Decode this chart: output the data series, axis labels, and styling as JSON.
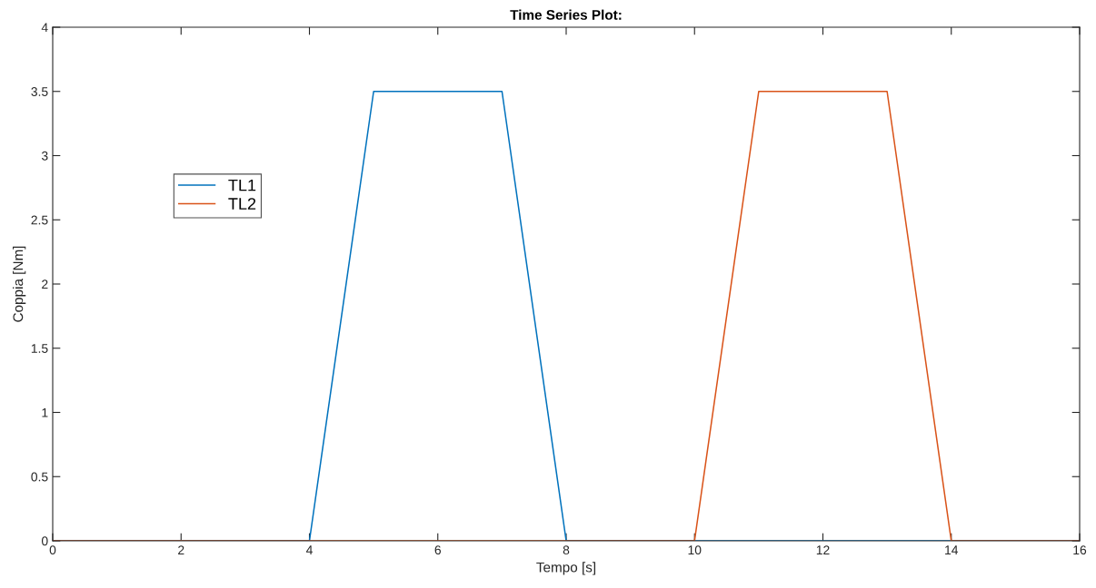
{
  "chart_data": {
    "type": "line",
    "title": "Time Series Plot:",
    "xlabel": "Tempo [s]",
    "ylabel": "Coppia [Nm]",
    "xlim": [
      0,
      16
    ],
    "xticks": [
      0,
      2,
      4,
      6,
      8,
      10,
      12,
      14,
      16
    ],
    "ylim": [
      0,
      4
    ],
    "yticks": [
      0,
      0.5,
      1,
      1.5,
      2,
      2.5,
      3,
      3.5,
      4
    ],
    "grid": false,
    "legend": "top left",
    "line_style": "solid",
    "series": [
      {
        "name": "TL1",
        "color": "#0072bd",
        "x": [
          0,
          4,
          5,
          7,
          8,
          16
        ],
        "values": [
          0,
          0,
          3.5,
          3.5,
          0,
          0
        ]
      },
      {
        "name": "TL2",
        "color": "#d95319",
        "x": [
          0,
          10,
          11,
          13,
          14,
          16
        ],
        "values": [
          0,
          0,
          3.5,
          3.5,
          0,
          0
        ]
      }
    ]
  }
}
